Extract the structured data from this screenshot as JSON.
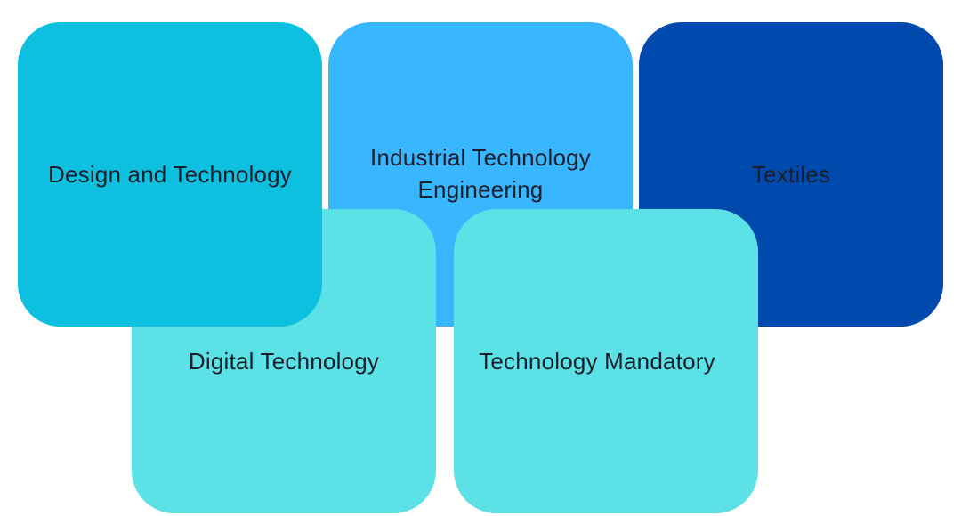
{
  "diagram": {
    "tiles": [
      {
        "id": "design",
        "label": "Design and Technology",
        "color": "#0DC0DF"
      },
      {
        "id": "industrial",
        "label_line1": "Industrial Technology",
        "label_line2": "Engineering",
        "color": "#38B6FF"
      },
      {
        "id": "textiles",
        "label": "Textiles",
        "color": "#004AAD"
      },
      {
        "id": "digital",
        "label": "Digital Technology",
        "color": "#5CE1E6"
      },
      {
        "id": "mandatory",
        "label": "Technology Mandatory",
        "color": "#5CE1E6"
      }
    ]
  }
}
